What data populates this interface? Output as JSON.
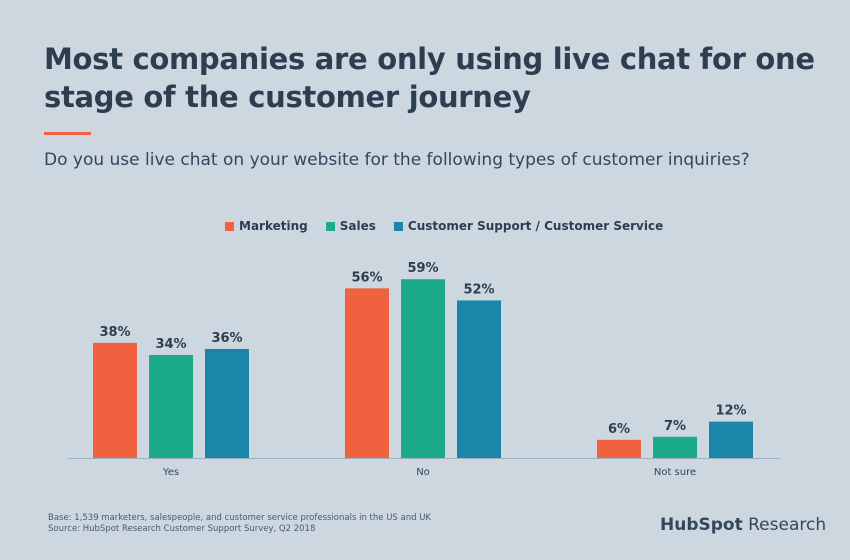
{
  "title": "Most companies are only using live chat for one stage of the customer journey",
  "subtitle": "Do you use live chat on your website for the following types of customer inquiries?",
  "chart_data": {
    "type": "bar",
    "categories": [
      "Yes",
      "No",
      "Not sure"
    ],
    "series": [
      {
        "name": "Marketing",
        "values": [
          38,
          56,
          6
        ],
        "color": "#f0623f"
      },
      {
        "name": "Sales",
        "values": [
          34,
          59,
          7
        ],
        "color": "#1bab8a"
      },
      {
        "name": "Customer Support / Customer Service",
        "values": [
          36,
          52,
          12
        ],
        "color": "#1a86a8"
      }
    ],
    "value_format": "%",
    "legend": "top",
    "grid": false,
    "ylim": [
      0,
      65
    ]
  },
  "footer": {
    "base": "Base: 1,539 marketers, salespeople, and customer service professionals in the US and UK",
    "source": "Source: HubSpot Research Customer Support Survey, Q2 2018"
  },
  "logo": {
    "brand": "HubSpot",
    "suffix": "Research"
  }
}
